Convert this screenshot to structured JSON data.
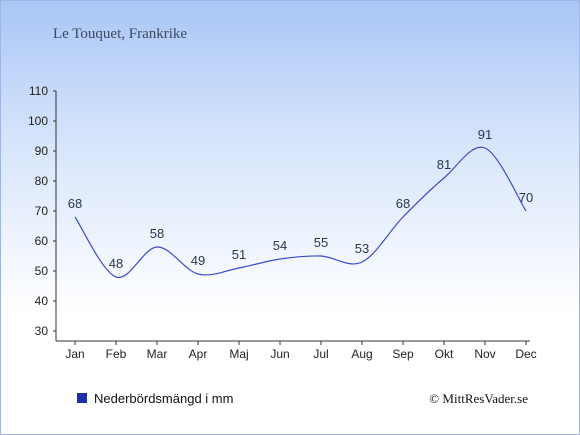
{
  "chart_data": {
    "type": "line",
    "title": "Le Touquet, Frankrike",
    "categories": [
      "Jan",
      "Feb",
      "Mar",
      "Apr",
      "Maj",
      "Jun",
      "Jul",
      "Aug",
      "Sep",
      "Okt",
      "Nov",
      "Dec"
    ],
    "series": [
      {
        "name": "Nederbördsmängd i mm",
        "values": [
          68,
          48,
          58,
          49,
          51,
          54,
          55,
          53,
          68,
          81,
          91,
          70
        ],
        "color": "#3a4cc8"
      }
    ],
    "ylim": [
      30,
      110
    ],
    "yticks": [
      30,
      40,
      50,
      60,
      70,
      80,
      90,
      100,
      110
    ],
    "legend_position": "bottom-left",
    "legend_swatch_color": "#1c2fa8",
    "grid": false
  },
  "credit": "© MittResVader.se"
}
